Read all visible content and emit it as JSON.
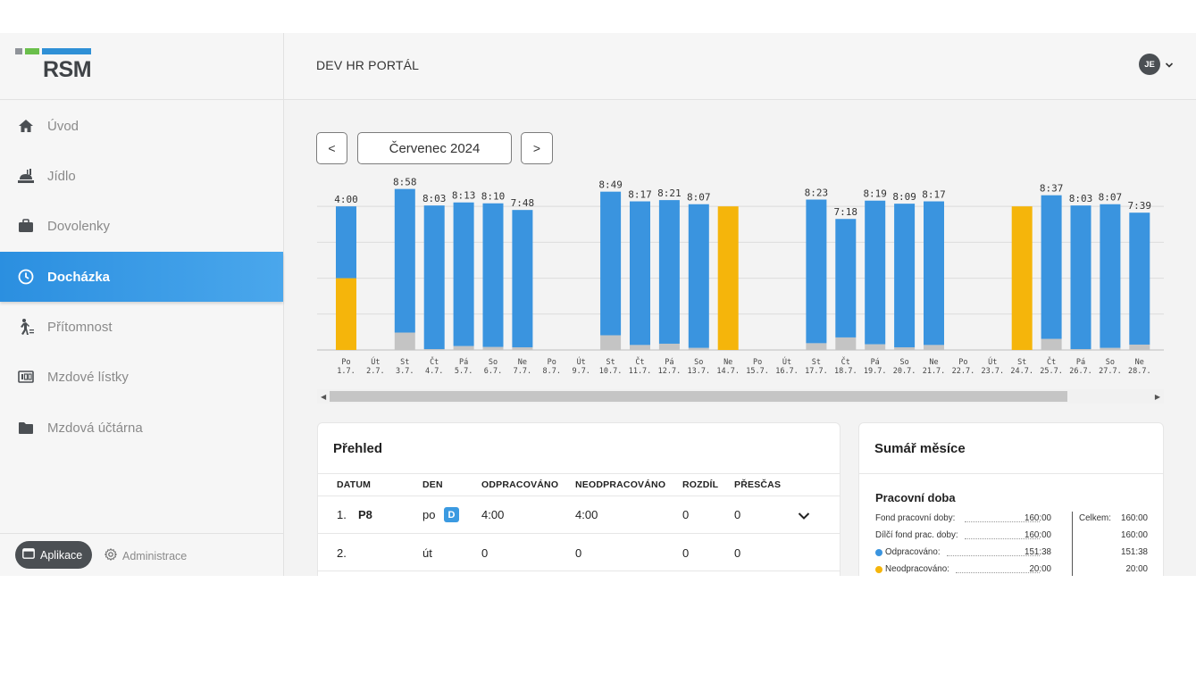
{
  "brand": {
    "logo_text": "RSM",
    "colors": {
      "gray": "#8f9399",
      "green": "#6abf4b",
      "blue": "#2f90d6"
    }
  },
  "header": {
    "title": "DEV HR PORTÁL",
    "avatar_initials": "JE"
  },
  "sidebar": {
    "items": [
      {
        "label": "Úvod",
        "icon": "home-icon"
      },
      {
        "label": "Jídlo",
        "icon": "food-icon"
      },
      {
        "label": "Dovolenky",
        "icon": "briefcase-icon"
      },
      {
        "label": "Docházka",
        "icon": "clock-icon",
        "active": true
      },
      {
        "label": "Přítomnost",
        "icon": "person-running-icon"
      },
      {
        "label": "Mzdové lístky",
        "icon": "payslip-icon"
      },
      {
        "label": "Mzdová účtárna",
        "icon": "folder-icon"
      }
    ],
    "apps_label": "Aplikace",
    "admin_label": "Administrace"
  },
  "month_nav": {
    "prev": "<",
    "month": "Červenec 2024",
    "next": ">"
  },
  "chart_data": {
    "type": "bar",
    "stacked": true,
    "colors": {
      "worked": "#3a94df",
      "absence": "#f5b50b",
      "remainder": "#c4c4c4"
    },
    "ylim": [
      0,
      9.5
    ],
    "grid": true,
    "days": [
      {
        "dow": "Po",
        "date": "1.7.",
        "label": "4:00",
        "worked": 4.0,
        "absence": 4.0,
        "gray": 0
      },
      {
        "dow": "Út",
        "date": "2.7.",
        "label": "",
        "worked": 0,
        "absence": 0,
        "gray": 0
      },
      {
        "dow": "St",
        "date": "3.7.",
        "label": "8:58",
        "worked": 8.97,
        "absence": 0,
        "gray": 0.97
      },
      {
        "dow": "Čt",
        "date": "4.7.",
        "label": "8:03",
        "worked": 8.05,
        "absence": 0,
        "gray": 0.05
      },
      {
        "dow": "Pá",
        "date": "5.7.",
        "label": "8:13",
        "worked": 8.22,
        "absence": 0,
        "gray": 0.22
      },
      {
        "dow": "So",
        "date": "6.7.",
        "label": "8:10",
        "worked": 8.17,
        "absence": 0,
        "gray": 0.17
      },
      {
        "dow": "Ne",
        "date": "7.7.",
        "label": "7:48",
        "worked": 7.8,
        "absence": 0,
        "gray": 0.15
      },
      {
        "dow": "Po",
        "date": "8.7.",
        "label": "",
        "worked": 0,
        "absence": 0,
        "gray": 0
      },
      {
        "dow": "Út",
        "date": "9.7.",
        "label": "",
        "worked": 0,
        "absence": 0,
        "gray": 0
      },
      {
        "dow": "St",
        "date": "10.7.",
        "label": "8:49",
        "worked": 8.82,
        "absence": 0,
        "gray": 0.82
      },
      {
        "dow": "Čt",
        "date": "11.7.",
        "label": "8:17",
        "worked": 8.28,
        "absence": 0,
        "gray": 0.28
      },
      {
        "dow": "Pá",
        "date": "12.7.",
        "label": "8:21",
        "worked": 8.35,
        "absence": 0,
        "gray": 0.35
      },
      {
        "dow": "So",
        "date": "13.7.",
        "label": "8:07",
        "worked": 8.12,
        "absence": 0,
        "gray": 0.12
      },
      {
        "dow": "Ne",
        "date": "14.7.",
        "label": "",
        "worked": 0,
        "absence": 8.0,
        "gray": 0
      },
      {
        "dow": "Po",
        "date": "15.7.",
        "label": "",
        "worked": 0,
        "absence": 0,
        "gray": 0
      },
      {
        "dow": "Út",
        "date": "16.7.",
        "label": "",
        "worked": 0,
        "absence": 0,
        "gray": 0
      },
      {
        "dow": "St",
        "date": "17.7.",
        "label": "8:23",
        "worked": 8.38,
        "absence": 0,
        "gray": 0.38
      },
      {
        "dow": "Čt",
        "date": "18.7.",
        "label": "7:18",
        "worked": 7.3,
        "absence": 0,
        "gray": 0.7
      },
      {
        "dow": "Pá",
        "date": "19.7.",
        "label": "8:19",
        "worked": 8.32,
        "absence": 0,
        "gray": 0.32
      },
      {
        "dow": "So",
        "date": "20.7.",
        "label": "8:09",
        "worked": 8.15,
        "absence": 0,
        "gray": 0.15
      },
      {
        "dow": "Ne",
        "date": "21.7.",
        "label": "8:17",
        "worked": 8.28,
        "absence": 0,
        "gray": 0.28
      },
      {
        "dow": "Po",
        "date": "22.7.",
        "label": "",
        "worked": 0,
        "absence": 0,
        "gray": 0
      },
      {
        "dow": "Út",
        "date": "23.7.",
        "label": "",
        "worked": 0,
        "absence": 0,
        "gray": 0
      },
      {
        "dow": "St",
        "date": "24.7.",
        "label": "",
        "worked": 0,
        "absence": 8.0,
        "gray": 0
      },
      {
        "dow": "Čt",
        "date": "25.7.",
        "label": "8:37",
        "worked": 8.62,
        "absence": 0,
        "gray": 0.62
      },
      {
        "dow": "Pá",
        "date": "26.7.",
        "label": "8:03",
        "worked": 8.05,
        "absence": 0,
        "gray": 0.05
      },
      {
        "dow": "So",
        "date": "27.7.",
        "label": "8:07",
        "worked": 8.12,
        "absence": 0,
        "gray": 0.12
      },
      {
        "dow": "Ne",
        "date": "28.7.",
        "label": "7:39",
        "worked": 7.65,
        "absence": 0,
        "gray": 0.3
      }
    ]
  },
  "prehled": {
    "title": "Přehled",
    "columns": [
      "DATUM",
      "DEN",
      "ODPRACOVÁNO",
      "NEODPRACOVÁNO",
      "ROZDÍL",
      "PŘESČAS"
    ],
    "rows": [
      {
        "num": "1.",
        "code": "P8",
        "day": "po",
        "badge": "D",
        "worked": "4:00",
        "unworked": "4:00",
        "diff": "0",
        "overtime": "0"
      },
      {
        "num": "2.",
        "code": "",
        "day": "út",
        "badge": "",
        "worked": "0",
        "unworked": "0",
        "diff": "0",
        "overtime": "0"
      }
    ]
  },
  "sumar": {
    "title": "Sumář měsíce",
    "subtitle": "Pracovní doba",
    "total_label": "Celkem:",
    "rows": [
      {
        "label": "Fond pracovní doby:",
        "value": "160:00",
        "total": "160:00",
        "dot": ""
      },
      {
        "label": "Dílčí fond prac. doby:",
        "value": "160:00",
        "total": "160:00",
        "dot": ""
      },
      {
        "label": "Odpracováno:",
        "value": "151:38",
        "total": "151:38",
        "dot": "#3a94df"
      },
      {
        "label": "Neodpracováno:",
        "value": "20:00",
        "total": "20:00",
        "dot": "#f5b50b"
      }
    ]
  }
}
